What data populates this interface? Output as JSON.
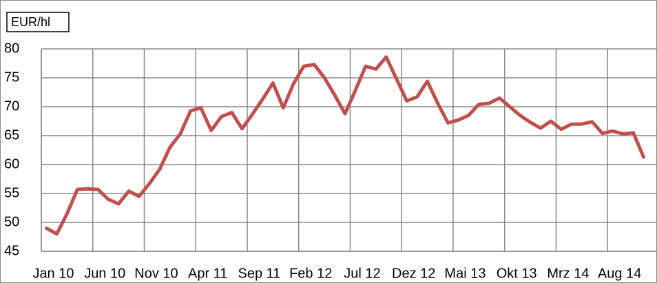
{
  "chart_data": {
    "type": "line",
    "ylabel": "EUR/hl",
    "categories": [
      "Jan 10",
      null,
      null,
      null,
      null,
      "Jun 10",
      null,
      null,
      null,
      null,
      "Nov 10",
      null,
      null,
      null,
      null,
      "Apr 11",
      null,
      null,
      null,
      null,
      "Sep 11",
      null,
      null,
      null,
      null,
      "Feb 12",
      null,
      null,
      null,
      null,
      "Jul 12",
      null,
      null,
      null,
      null,
      "Dez 12",
      null,
      null,
      null,
      null,
      "Mai 13",
      null,
      null,
      null,
      null,
      "Okt 13",
      null,
      null,
      null,
      null,
      "Mrz 14",
      null,
      null,
      null,
      null,
      "Aug 14",
      null,
      null,
      null
    ],
    "series": [
      {
        "name": "EUR/hl",
        "color": "#c0504d",
        "values": [
          49.0,
          48.0,
          51.5,
          55.7,
          55.8,
          55.7,
          54.0,
          53.2,
          55.4,
          54.5,
          56.7,
          59.2,
          63.0,
          65.3,
          69.3,
          69.8,
          65.9,
          68.3,
          69.0,
          66.2,
          68.7,
          71.3,
          74.1,
          69.8,
          74.0,
          77.0,
          77.3,
          75.0,
          72.0,
          68.8,
          72.8,
          77.0,
          76.5,
          78.6,
          74.8,
          71.0,
          71.7,
          74.4,
          70.6,
          67.2,
          67.7,
          68.5,
          70.4,
          70.6,
          71.5,
          70.0,
          68.5,
          67.3,
          66.3,
          67.5,
          66.1,
          67.0,
          67.0,
          67.4,
          65.4,
          65.8,
          65.3,
          65.5,
          61.3
        ]
      }
    ],
    "ylim": [
      45,
      80
    ],
    "yticks": [
      45,
      50,
      55,
      60,
      65,
      70,
      75,
      80
    ],
    "grid": true
  }
}
